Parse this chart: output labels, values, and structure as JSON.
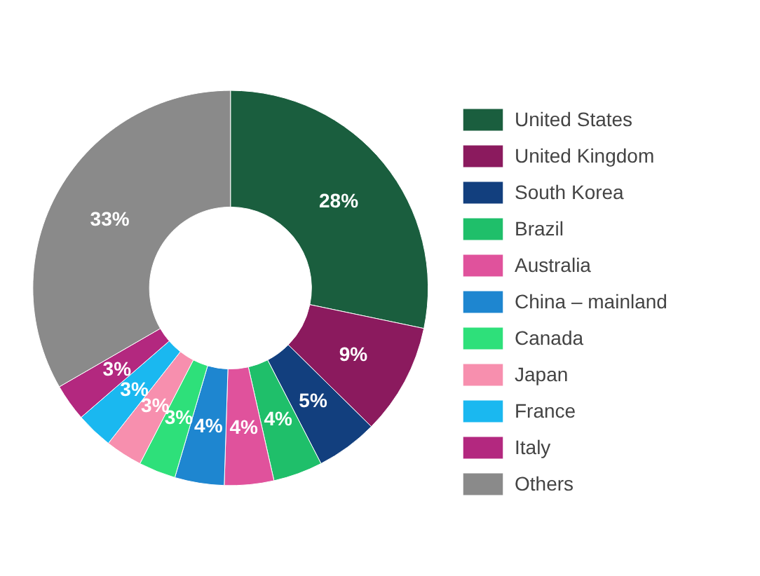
{
  "chart_data": {
    "type": "donut",
    "categories": [
      "United States",
      "United Kingdom",
      "South Korea",
      "Brazil",
      "Australia",
      "China – mainland",
      "Canada",
      "Japan",
      "France",
      "Italy",
      "Others"
    ],
    "values": [
      28,
      9,
      5,
      4,
      4,
      4,
      3,
      3,
      3,
      3,
      33
    ],
    "value_labels": [
      "28%",
      "9%",
      "5%",
      "4%",
      "4%",
      "4%",
      "3%",
      "3%",
      "3%",
      "3%",
      "33%"
    ],
    "colors": [
      "#1a5e3e",
      "#8b1a5e",
      "#123f7e",
      "#1fbf6a",
      "#e0529c",
      "#1e86d0",
      "#2ee07a",
      "#f78fae",
      "#1ab8f0",
      "#b3287f",
      "#8a8a8a"
    ],
    "legend": "right"
  }
}
